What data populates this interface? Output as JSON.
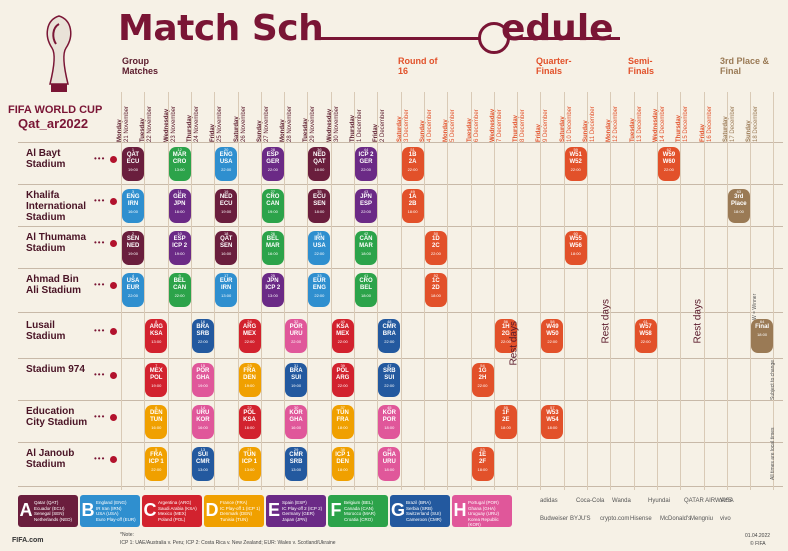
{
  "title_left": "Match Sch",
  "title_right": "edule",
  "brand": {
    "logo_line1": "FIFA WORLD CUP",
    "logo_line2": "Qat_ar2022"
  },
  "stages": {
    "group": "Group Matches",
    "r16": "Round of 16",
    "qf": "Quarter-Finals",
    "sf": "Semi-Finals",
    "final": "3rd Place & Final"
  },
  "days": [
    [
      "Monday",
      "21 November"
    ],
    [
      "Tuesday",
      "22 November"
    ],
    [
      "Wednesday",
      "23 November"
    ],
    [
      "Thursday",
      "24 November"
    ],
    [
      "Friday",
      "25 November"
    ],
    [
      "Saturday",
      "26 November"
    ],
    [
      "Sunday",
      "27 November"
    ],
    [
      "Monday",
      "28 November"
    ],
    [
      "Tuesday",
      "29 November"
    ],
    [
      "Wednesday",
      "30 November"
    ],
    [
      "Thursday",
      "1 December"
    ],
    [
      "Friday",
      "2 December"
    ],
    [
      "Saturday",
      "3 December"
    ],
    [
      "Sunday",
      "4 December"
    ],
    [
      "Monday",
      "5 December"
    ],
    [
      "Tuesday",
      "6 December"
    ],
    [
      "Wednesday",
      "7 December"
    ],
    [
      "Thursday",
      "8 December"
    ],
    [
      "Friday",
      "9 December"
    ],
    [
      "Saturday",
      "10 December"
    ],
    [
      "Sunday",
      "11 December"
    ],
    [
      "Monday",
      "12 December"
    ],
    [
      "Tuesday",
      "13 December"
    ],
    [
      "Wednesday",
      "14 December"
    ],
    [
      "Thursday",
      "15 December"
    ],
    [
      "Friday",
      "16 December"
    ],
    [
      "Saturday",
      "17 December"
    ],
    [
      "Sunday",
      "18 December"
    ]
  ],
  "venues": [
    "Al Bayt Stadium",
    "Khalifa International Stadium",
    "Al Thumama Stadium",
    "Ahmad Bin Ali Stadium",
    "Lusail Stadium",
    "Stadium 974",
    "Education City Stadium",
    "Al Janoub Stadium"
  ],
  "rest_label": "Rest days",
  "side_notes": {
    "winner": "W = Winner",
    "subject": "Subject to change",
    "times": "All times are local times"
  },
  "matches": [
    {
      "v": 0,
      "d": 0,
      "g": "A",
      "n": "1",
      "t1": "QAT",
      "t2": "ECU",
      "time": "19:00"
    },
    {
      "v": 0,
      "d": 2,
      "g": "F",
      "n": "12",
      "t1": "MAR",
      "t2": "CRO",
      "time": "13:00"
    },
    {
      "v": 0,
      "d": 4,
      "g": "B",
      "n": "20",
      "t1": "ENG",
      "t2": "USA",
      "time": "22:00"
    },
    {
      "v": 0,
      "d": 6,
      "g": "E",
      "n": "28",
      "t1": "ESP",
      "t2": "GER",
      "time": "22:00"
    },
    {
      "v": 0,
      "d": 8,
      "g": "A",
      "n": "36",
      "t1": "NED",
      "t2": "QAT",
      "time": "18:00"
    },
    {
      "v": 0,
      "d": 10,
      "g": "E",
      "n": "44",
      "t1": "ICP 2",
      "t2": "GER",
      "time": "22:00"
    },
    {
      "v": 1,
      "d": 0,
      "g": "B",
      "n": "3",
      "t1": "ENG",
      "t2": "IRN",
      "time": "16:00"
    },
    {
      "v": 1,
      "d": 2,
      "g": "E",
      "n": "11",
      "t1": "GER",
      "t2": "JPN",
      "time": "16:00"
    },
    {
      "v": 1,
      "d": 4,
      "g": "A",
      "n": "19",
      "t1": "NED",
      "t2": "ECU",
      "time": "19:00"
    },
    {
      "v": 1,
      "d": 6,
      "g": "F",
      "n": "27",
      "t1": "CRO",
      "t2": "CAN",
      "time": "19:00"
    },
    {
      "v": 1,
      "d": 8,
      "g": "A",
      "n": "35",
      "t1": "ECU",
      "t2": "SEN",
      "time": "18:00"
    },
    {
      "v": 1,
      "d": 10,
      "g": "E",
      "n": "43",
      "t1": "JPN",
      "t2": "ESP",
      "time": "22:00"
    },
    {
      "v": 2,
      "d": 0,
      "g": "A",
      "n": "2",
      "t1": "SEN",
      "t2": "NED",
      "time": "19:00"
    },
    {
      "v": 2,
      "d": 2,
      "g": "E",
      "n": "10",
      "t1": "ESP",
      "t2": "ICP 2",
      "time": "19:00"
    },
    {
      "v": 2,
      "d": 4,
      "g": "A",
      "n": "18",
      "t1": "QAT",
      "t2": "SEN",
      "time": "16:00"
    },
    {
      "v": 2,
      "d": 6,
      "g": "F",
      "n": "26",
      "t1": "BEL",
      "t2": "MAR",
      "time": "16:00"
    },
    {
      "v": 2,
      "d": 8,
      "g": "B",
      "n": "34",
      "t1": "IRN",
      "t2": "USA",
      "time": "22:00"
    },
    {
      "v": 2,
      "d": 10,
      "g": "F",
      "n": "42",
      "t1": "CAN",
      "t2": "MAR",
      "time": "18:00"
    },
    {
      "v": 3,
      "d": 0,
      "g": "B",
      "n": "4",
      "t1": "USA",
      "t2": "EUR",
      "time": "22:00"
    },
    {
      "v": 3,
      "d": 2,
      "g": "F",
      "n": "9",
      "t1": "BEL",
      "t2": "CAN",
      "time": "22:00"
    },
    {
      "v": 3,
      "d": 4,
      "g": "B",
      "n": "17",
      "t1": "EUR",
      "t2": "IRN",
      "time": "13:00"
    },
    {
      "v": 3,
      "d": 6,
      "g": "E",
      "n": "25",
      "t1": "JPN",
      "t2": "ICP 2",
      "time": "13:00"
    },
    {
      "v": 3,
      "d": 8,
      "g": "B",
      "n": "33",
      "t1": "EUR",
      "t2": "ENG",
      "time": "22:00"
    },
    {
      "v": 3,
      "d": 10,
      "g": "F",
      "n": "41",
      "t1": "CRO",
      "t2": "BEL",
      "time": "18:00"
    },
    {
      "v": 4,
      "d": 1,
      "g": "C",
      "n": "8",
      "t1": "ARG",
      "t2": "KSA",
      "time": "13:00"
    },
    {
      "v": 4,
      "d": 3,
      "g": "G",
      "n": "16",
      "t1": "BRA",
      "t2": "SRB",
      "time": "22:00"
    },
    {
      "v": 4,
      "d": 5,
      "g": "C",
      "n": "24",
      "t1": "ARG",
      "t2": "MEX",
      "time": "22:00"
    },
    {
      "v": 4,
      "d": 7,
      "g": "H",
      "n": "32",
      "t1": "POR",
      "t2": "URU",
      "time": "22:00"
    },
    {
      "v": 4,
      "d": 9,
      "g": "C",
      "n": "40",
      "t1": "KSA",
      "t2": "MEX",
      "time": "22:00"
    },
    {
      "v": 4,
      "d": 11,
      "g": "G",
      "n": "48",
      "t1": "CMR",
      "t2": "BRA",
      "time": "22:00"
    },
    {
      "v": 5,
      "d": 1,
      "g": "C",
      "n": "7",
      "t1": "MEX",
      "t2": "POL",
      "time": "19:00"
    },
    {
      "v": 5,
      "d": 3,
      "g": "H",
      "n": "15",
      "t1": "POR",
      "t2": "GHA",
      "time": "19:00"
    },
    {
      "v": 5,
      "d": 5,
      "g": "D",
      "n": "23",
      "t1": "FRA",
      "t2": "DEN",
      "time": "19:00"
    },
    {
      "v": 5,
      "d": 7,
      "g": "G",
      "n": "31",
      "t1": "BRA",
      "t2": "SUI",
      "time": "19:00"
    },
    {
      "v": 5,
      "d": 9,
      "g": "C",
      "n": "39",
      "t1": "POL",
      "t2": "ARG",
      "time": "22:00"
    },
    {
      "v": 5,
      "d": 11,
      "g": "G",
      "n": "47",
      "t1": "SRB",
      "t2": "SUI",
      "time": "22:00"
    },
    {
      "v": 6,
      "d": 1,
      "g": "D",
      "n": "6",
      "t1": "DEN",
      "t2": "TUN",
      "time": "16:00"
    },
    {
      "v": 6,
      "d": 3,
      "g": "H",
      "n": "14",
      "t1": "URU",
      "t2": "KOR",
      "time": "16:00"
    },
    {
      "v": 6,
      "d": 5,
      "g": "C",
      "n": "22",
      "t1": "POL",
      "t2": "KSA",
      "time": "16:00"
    },
    {
      "v": 6,
      "d": 7,
      "g": "H",
      "n": "30",
      "t1": "KOR",
      "t2": "GHA",
      "time": "16:00"
    },
    {
      "v": 6,
      "d": 9,
      "g": "D",
      "n": "37",
      "t1": "TUN",
      "t2": "FRA",
      "time": "18:00"
    },
    {
      "v": 6,
      "d": 11,
      "g": "H",
      "n": "45",
      "t1": "KOR",
      "t2": "POR",
      "time": "18:00"
    },
    {
      "v": 7,
      "d": 1,
      "g": "D",
      "n": "5",
      "t1": "FRA",
      "t2": "ICP 1",
      "time": "22:00"
    },
    {
      "v": 7,
      "d": 3,
      "g": "G",
      "n": "13",
      "t1": "SUI",
      "t2": "CMR",
      "time": "13:00"
    },
    {
      "v": 7,
      "d": 5,
      "g": "D",
      "n": "21",
      "t1": "TUN",
      "t2": "ICP 1",
      "time": "13:00"
    },
    {
      "v": 7,
      "d": 7,
      "g": "G",
      "n": "29",
      "t1": "CMR",
      "t2": "SRB",
      "time": "13:00"
    },
    {
      "v": 7,
      "d": 9,
      "g": "D",
      "n": "38",
      "t1": "ICP 1",
      "t2": "DEN",
      "time": "18:00"
    },
    {
      "v": 7,
      "d": 11,
      "g": "H",
      "n": "46",
      "t1": "GHA",
      "t2": "URU",
      "time": "18:00"
    },
    {
      "v": 0,
      "d": 12,
      "g": "R",
      "n": "51",
      "t1": "1B",
      "t2": "2A",
      "time": "22:00"
    },
    {
      "v": 1,
      "d": 12,
      "g": "R",
      "n": "49",
      "t1": "1A",
      "t2": "2B",
      "time": "18:00"
    },
    {
      "v": 2,
      "d": 13,
      "g": "R",
      "n": "50",
      "t1": "1D",
      "t2": "2C",
      "time": "22:00"
    },
    {
      "v": 3,
      "d": 13,
      "g": "R",
      "n": "52",
      "t1": "1C",
      "t2": "2D",
      "time": "18:00"
    },
    {
      "v": 4,
      "d": 16,
      "g": "R",
      "n": "56",
      "t1": "1H",
      "t2": "2G",
      "time": "22:00"
    },
    {
      "v": 5,
      "d": 15,
      "g": "R",
      "n": "54",
      "t1": "1G",
      "t2": "2H",
      "time": "22:00"
    },
    {
      "v": 6,
      "d": 16,
      "g": "R",
      "n": "55",
      "t1": "1F",
      "t2": "2E",
      "time": "18:00"
    },
    {
      "v": 7,
      "d": 15,
      "g": "R",
      "n": "53",
      "t1": "1E",
      "t2": "2F",
      "time": "18:00"
    },
    {
      "v": 0,
      "d": 19,
      "g": "R",
      "n": "59",
      "t1": "W51",
      "t2": "W52",
      "time": "22:00"
    },
    {
      "v": 2,
      "d": 19,
      "g": "R",
      "n": "60",
      "t1": "W55",
      "t2": "W56",
      "time": "18:00"
    },
    {
      "v": 4,
      "d": 18,
      "g": "R",
      "n": "58",
      "t1": "W49",
      "t2": "W50",
      "time": "22:00"
    },
    {
      "v": 6,
      "d": 18,
      "g": "R",
      "n": "57",
      "t1": "W53",
      "t2": "W54",
      "time": "18:00"
    },
    {
      "v": 0,
      "d": 23,
      "g": "R",
      "n": "62",
      "t1": "W59",
      "t2": "W60",
      "time": "22:00"
    },
    {
      "v": 4,
      "d": 22,
      "g": "R",
      "n": "61",
      "t1": "W57",
      "t2": "W58",
      "time": "22:00"
    },
    {
      "v": 1,
      "d": 26,
      "g": "F3",
      "n": "63",
      "t1": "3rd",
      "t2": "Place",
      "time": "18:00"
    },
    {
      "v": 4,
      "d": 27,
      "g": "F3",
      "n": "64",
      "t1": "Final",
      "t2": "",
      "time": "18:00"
    }
  ],
  "legend": [
    {
      "g": "A",
      "lines": [
        "Qatar (QAT)",
        "Ecuador (ECU)",
        "Senegal (SEN)",
        "Netherlands (NED)"
      ]
    },
    {
      "g": "B",
      "lines": [
        "England (ENG)",
        "IR Iran (IRN)",
        "USA (USA)",
        "Euro Play-off (EUR)"
      ]
    },
    {
      "g": "C",
      "lines": [
        "Argentina (ARG)",
        "Saudi Arabia (KSA)",
        "Mexico (MEX)",
        "Poland (POL)"
      ]
    },
    {
      "g": "D",
      "lines": [
        "France (FRA)",
        "IC Play-off 1 (ICP 1)",
        "Denmark (DEN)",
        "Tunisia (TUN)"
      ]
    },
    {
      "g": "E",
      "lines": [
        "Spain (ESP)",
        "IC Play-off 2 (ICP 2)",
        "Germany (GER)",
        "Japan (JPN)"
      ]
    },
    {
      "g": "F",
      "lines": [
        "Belgium (BEL)",
        "Canada (CAN)",
        "Morocco (MAR)",
        "Croatia (CRO)"
      ]
    },
    {
      "g": "G",
      "lines": [
        "Brazil (BRA)",
        "Serbia (SRB)",
        "Switzerland (SUI)",
        "Cameroon (CMR)"
      ]
    },
    {
      "g": "H",
      "lines": [
        "Portugal (POR)",
        "Ghana (GHA)",
        "Uruguay (URU)",
        "Korea Republic (KOR)"
      ]
    }
  ],
  "footnote_label": "*Note:",
  "footnote": "ICP 1: UAE/Australia v. Peru; ICP 2: Costa Rica v. New Zealand; EUR: Wales v. Scotland/Ukraine",
  "footer_left": "FIFA.com",
  "date_note": "01.04.2022",
  "copyright": "© FIFA",
  "sponsors": [
    "adidas",
    "Coca-Cola",
    "Wanda",
    "Hyundai",
    "QATAR AIRWAYS",
    "VISA",
    "Budweiser",
    "BYJU'S",
    "crypto.com",
    "Hisense",
    "McDonald's",
    "Mengniu",
    "vivo"
  ],
  "colors": {
    "A": "#6a1e3d",
    "B": "#2f8fcf",
    "C": "#d2222e",
    "D": "#f0a000",
    "E": "#6b2a86",
    "F": "#2ca34a",
    "G": "#23599f",
    "H": "#e0579a",
    "R": "#e2512a",
    "F3": "#9a7a55"
  }
}
